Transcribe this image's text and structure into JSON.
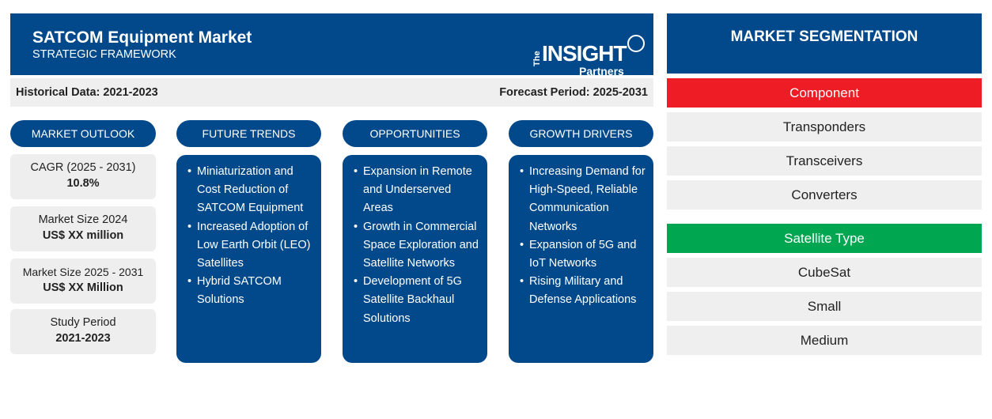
{
  "header": {
    "title": "SATCOM Equipment Market",
    "subtitle": "STRATEGIC FRAMEWORK",
    "logo": {
      "line1": "The",
      "line2": "INSIGHT",
      "line3": "Partners"
    }
  },
  "databar": {
    "historical": "Historical Data: 2021-2023",
    "forecast": "Forecast Period: 2025-2031"
  },
  "outlook": {
    "heading": "MARKET OUTLOOK",
    "boxes": [
      {
        "label": "CAGR (2025 - 2031)",
        "value": "10.8%"
      },
      {
        "label": "Market Size 2024",
        "value": "US$ XX million"
      },
      {
        "label": "Market Size 2025 - 2031",
        "value": "US$ XX Million"
      },
      {
        "label": "Study Period",
        "value": "2021-2023"
      }
    ]
  },
  "columns": [
    {
      "heading": "FUTURE TRENDS",
      "items": [
        "Miniaturization and Cost Reduction of SATCOM Equipment",
        "Increased Adoption of Low Earth Orbit (LEO) Satellites",
        "Hybrid SATCOM Solutions"
      ]
    },
    {
      "heading": "OPPORTUNITIES",
      "items": [
        "Expansion in Remote and Underserved Areas",
        "Growth in Commercial Space Exploration and Satellite Networks",
        "Development of 5G Satellite Backhaul Solutions"
      ]
    },
    {
      "heading": "GROWTH DRIVERS",
      "items": [
        "Increasing Demand for High-Speed, Reliable Communication Networks",
        "Expansion of 5G and IoT Networks",
        "Rising Military and Defense Applications"
      ]
    }
  ],
  "segmentation": {
    "heading": "MARKET SEGMENTATION",
    "groups": [
      {
        "name": "Component",
        "color": "#ee1c25",
        "items": [
          "Transponders",
          "Transceivers",
          "Converters"
        ]
      },
      {
        "name": "Satellite Type",
        "color": "#00a650",
        "items": [
          "CubeSat",
          "Small",
          "Medium"
        ]
      }
    ]
  },
  "colors": {
    "primary": "#01498a",
    "panel": "#efefef"
  }
}
